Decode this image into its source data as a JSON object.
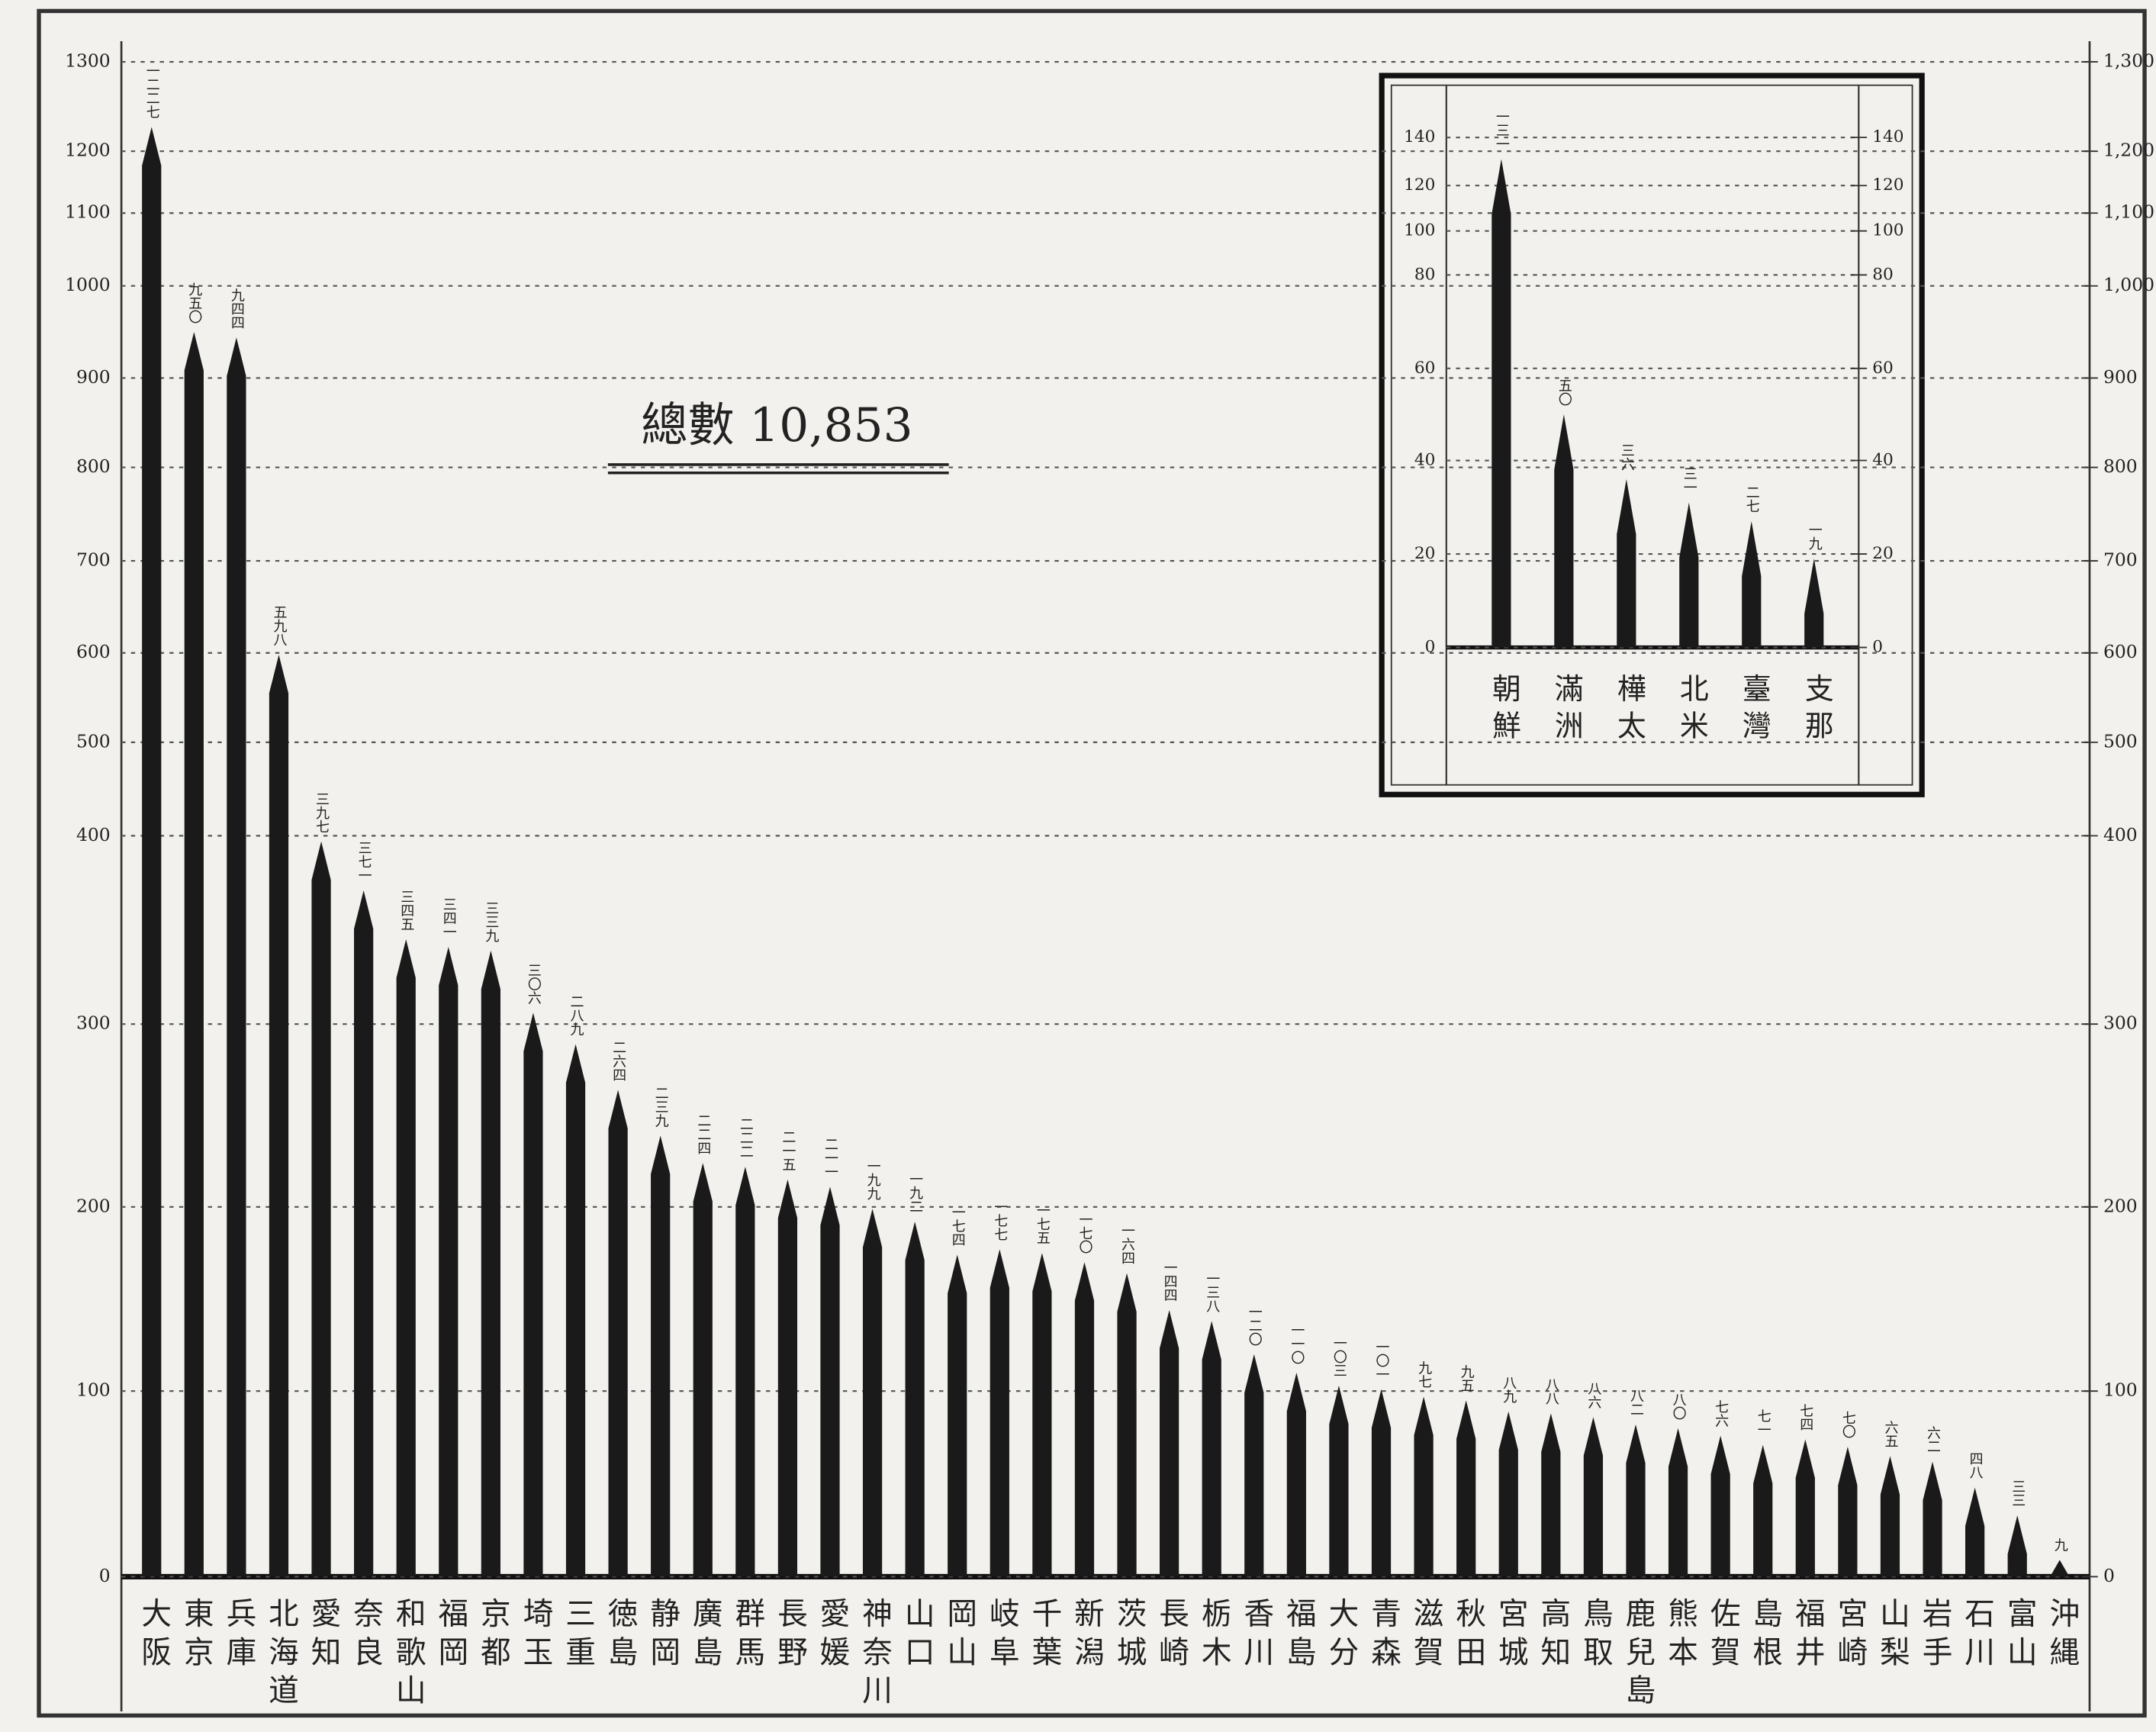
{
  "chart_data": [
    {
      "type": "bar",
      "title": "總數 10,853",
      "categories": [
        "大阪",
        "東京",
        "兵庫",
        "北海道",
        "愛知",
        "奈良",
        "和歌山",
        "福岡",
        "京都",
        "埼玉",
        "三重",
        "徳島",
        "静岡",
        "廣島",
        "群馬",
        "長野",
        "愛媛",
        "神奈川",
        "山口",
        "岡山",
        "岐阜",
        "千葉",
        "新潟",
        "茨城",
        "長崎",
        "栃木",
        "香川",
        "福島",
        "大分",
        "青森",
        "滋賀",
        "秋田",
        "宮城",
        "高知",
        "鳥取",
        "鹿兒島",
        "熊本",
        "佐賀",
        "島根",
        "福井",
        "宮崎",
        "山梨",
        "岩手",
        "石川",
        "富山",
        "沖縄"
      ],
      "values": [
        1227,
        950,
        944,
        598,
        397,
        371,
        345,
        341,
        339,
        306,
        289,
        264,
        239,
        224,
        222,
        215,
        211,
        199,
        192,
        174,
        177,
        175,
        170,
        164,
        144,
        138,
        120,
        110,
        103,
        101,
        97,
        95,
        89,
        88,
        86,
        82,
        80,
        76,
        71,
        74,
        70,
        65,
        62,
        48,
        33,
        9
      ],
      "value_labels": [
        "一二二七",
        "九五〇",
        "九四四",
        "五九八",
        "三九七",
        "三七一",
        "三四五",
        "三四一",
        "三三九",
        "三〇六",
        "二八九",
        "二六四",
        "二三九",
        "二二四",
        "二二二",
        "二一五",
        "二一一",
        "一九九",
        "一九二",
        "一七四",
        "一七七",
        "一七五",
        "一七〇",
        "一六四",
        "一四四",
        "一三八",
        "一二〇",
        "一一〇",
        "一〇三",
        "一〇一",
        "九七",
        "九五",
        "八九",
        "八八",
        "八六",
        "八二",
        "八〇",
        "七六",
        "七一",
        "七四",
        "七〇",
        "六五",
        "六二",
        "四八",
        "三三",
        "九"
      ],
      "color": "#1a1a1a",
      "ylim": [
        0,
        1300
      ],
      "yticks": [
        0,
        100,
        200,
        300,
        400,
        500,
        600,
        700,
        800,
        900,
        1000,
        1100,
        1200,
        1300
      ],
      "y2lim": [
        0,
        1300
      ],
      "y2ticks": [
        0,
        100,
        200,
        300,
        400,
        500,
        600,
        700,
        800,
        900,
        {
          "value": 1000,
          "label": "1,000"
        },
        {
          "value": 1100,
          "label": "1,100"
        },
        {
          "value": 1200,
          "label": "1,200"
        },
        {
          "value": 1300,
          "label": "1,300"
        }
      ],
      "grid": true
    },
    {
      "type": "bar",
      "categories": [
        "朝鮮",
        "滿洲",
        "樺太",
        "北米",
        "臺灣",
        "支那"
      ],
      "values": [
        131,
        50,
        36,
        31,
        27,
        19
      ],
      "value_labels": [
        "一三一",
        "五〇",
        "三六",
        "三一",
        "二七",
        "一九"
      ],
      "color": "#1a1a1a",
      "ylim": [
        0,
        140
      ],
      "yticks": [
        0,
        20,
        40,
        60,
        80,
        100,
        120,
        140
      ],
      "y2lim": [
        0,
        140
      ],
      "y2ticks": [
        0,
        20,
        40,
        60,
        80,
        100,
        120,
        140
      ],
      "grid": true
    }
  ]
}
